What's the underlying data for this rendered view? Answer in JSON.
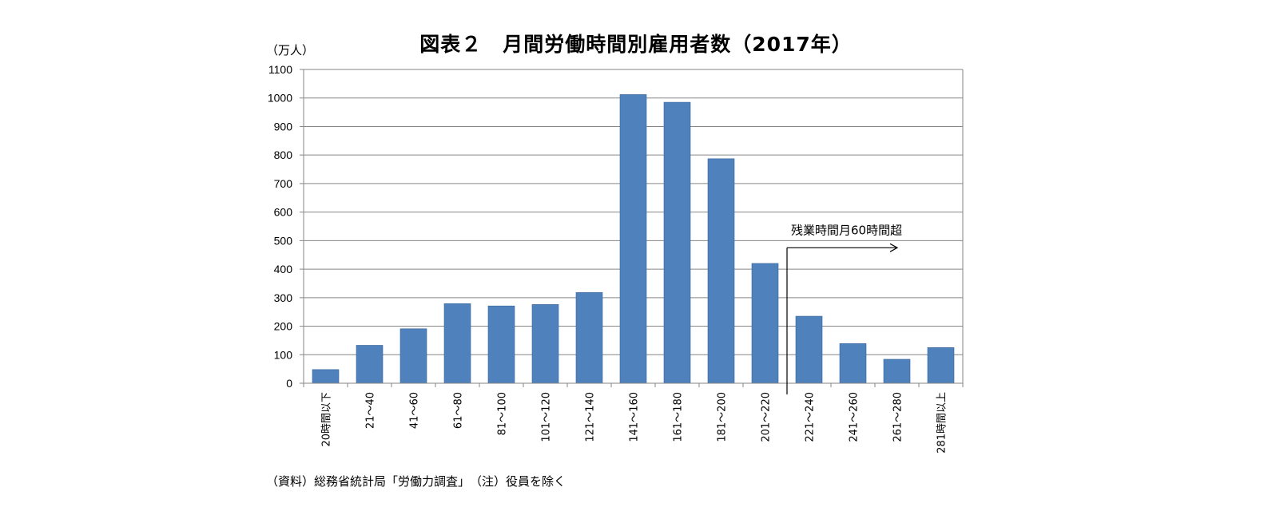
{
  "page": {
    "title": "図表２　月間労働時間別雇用者数（2017年）",
    "y_unit": "（万人）",
    "source_note": "（資料）総務省統計局「労働力調査」　（注）役員を除く"
  },
  "chart_data": {
    "type": "bar",
    "title": "図表２　月間労働時間別雇用者数（2017年）",
    "xlabel": "",
    "ylabel": "（万人）",
    "ylim": [
      0,
      1100
    ],
    "yticks": [
      0,
      100,
      200,
      300,
      400,
      500,
      600,
      700,
      800,
      900,
      1000,
      1100
    ],
    "grid": true,
    "legend": "none",
    "bar_color": "#4f81bd",
    "categories": [
      "20時間以下",
      "21～40",
      "41～60",
      "61～80",
      "81～100",
      "101～120",
      "121～140",
      "141～160",
      "161～180",
      "181～200",
      "201～220",
      "221～240",
      "241～260",
      "261～280",
      "281時間以上"
    ],
    "values": [
      48,
      133,
      191,
      279,
      271,
      276,
      318,
      1012,
      985,
      787,
      420,
      235,
      139,
      84,
      125
    ],
    "annotation": {
      "text": "残業時間月60時間超",
      "starts_between_categories": [
        "201～220",
        "221～240"
      ],
      "y_value": 475
    }
  }
}
